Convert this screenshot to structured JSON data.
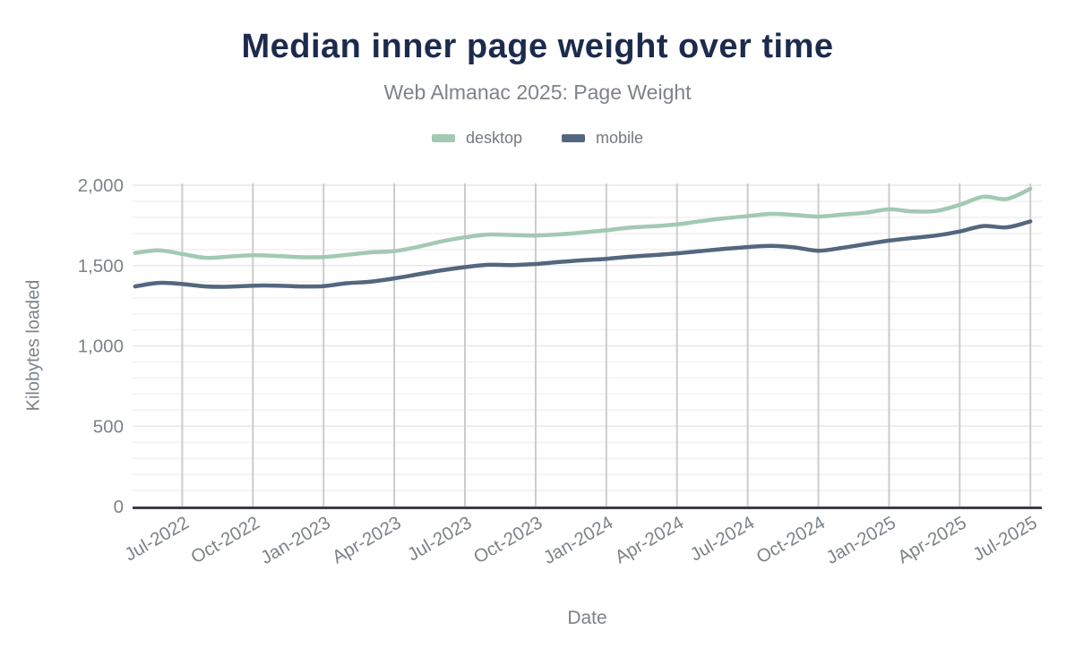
{
  "header": {
    "title": "Median inner page weight over time",
    "subtitle": "Web Almanac 2025: Page Weight"
  },
  "axes": {
    "y_title": "Kilobytes loaded",
    "x_title": "Date"
  },
  "colors": {
    "title": "#1c2b4d",
    "subtitle": "#7e8388",
    "tick_label": "#7d8289",
    "axis_line": "#3c3f46",
    "vertical_gridline": "#cccccc",
    "minor_gridline": "#f1f1f1",
    "major_gridline": "#e8e8e8"
  },
  "chart_data": {
    "type": "line",
    "title": "Median inner page weight over time",
    "subtitle": "Web Almanac 2025: Page Weight",
    "xlabel": "Date",
    "ylabel": "Kilobytes loaded",
    "ylim": [
      0,
      2000
    ],
    "legend_position": "top",
    "grid": {
      "vertical": "quarterly",
      "horizontal_minor_step": 100,
      "horizontal_major_step": 500
    },
    "y_ticks": [
      {
        "value": 0,
        "label": "0"
      },
      {
        "value": 500,
        "label": "500"
      },
      {
        "value": 1000,
        "label": "1,000"
      },
      {
        "value": 1500,
        "label": "1,500"
      },
      {
        "value": 2000,
        "label": "2,000"
      }
    ],
    "categories": [
      "May-2022",
      "Jun-2022",
      "Jul-2022",
      "Aug-2022",
      "Sep-2022",
      "Oct-2022",
      "Nov-2022",
      "Dec-2022",
      "Jan-2023",
      "Feb-2023",
      "Mar-2023",
      "Apr-2023",
      "May-2023",
      "Jun-2023",
      "Jul-2023",
      "Aug-2023",
      "Sep-2023",
      "Oct-2023",
      "Nov-2023",
      "Dec-2023",
      "Jan-2024",
      "Feb-2024",
      "Mar-2024",
      "Apr-2024",
      "May-2024",
      "Jun-2024",
      "Jul-2024",
      "Aug-2024",
      "Sep-2024",
      "Oct-2024",
      "Nov-2024",
      "Dec-2024",
      "Jan-2025",
      "Feb-2025",
      "Mar-2025",
      "Apr-2025",
      "May-2025",
      "Jun-2025",
      "Jul-2025"
    ],
    "x_ticks": [
      {
        "index": 2,
        "label": "Jul-2022"
      },
      {
        "index": 5,
        "label": "Oct-2022"
      },
      {
        "index": 8,
        "label": "Jan-2023"
      },
      {
        "index": 11,
        "label": "Apr-2023"
      },
      {
        "index": 14,
        "label": "Jul-2023"
      },
      {
        "index": 17,
        "label": "Oct-2023"
      },
      {
        "index": 20,
        "label": "Jan-2024"
      },
      {
        "index": 23,
        "label": "Apr-2024"
      },
      {
        "index": 26,
        "label": "Jul-2024"
      },
      {
        "index": 29,
        "label": "Oct-2024"
      },
      {
        "index": 32,
        "label": "Jan-2025"
      },
      {
        "index": 35,
        "label": "Apr-2025"
      },
      {
        "index": 38,
        "label": "Jul-2025"
      }
    ],
    "series": [
      {
        "name": "desktop",
        "color": "#a3c9b2",
        "values": [
          1578,
          1595,
          1572,
          1548,
          1556,
          1564,
          1560,
          1552,
          1553,
          1567,
          1582,
          1590,
          1616,
          1650,
          1676,
          1693,
          1690,
          1687,
          1694,
          1706,
          1720,
          1736,
          1745,
          1756,
          1776,
          1794,
          1808,
          1822,
          1815,
          1805,
          1817,
          1829,
          1850,
          1837,
          1840,
          1878,
          1928,
          1915,
          1978
        ]
      },
      {
        "name": "mobile",
        "color": "#53677e",
        "values": [
          1370,
          1392,
          1385,
          1370,
          1368,
          1375,
          1375,
          1370,
          1372,
          1390,
          1400,
          1420,
          1445,
          1470,
          1490,
          1505,
          1503,
          1510,
          1522,
          1533,
          1542,
          1555,
          1565,
          1576,
          1590,
          1604,
          1615,
          1623,
          1613,
          1592,
          1610,
          1633,
          1655,
          1672,
          1687,
          1712,
          1746,
          1738,
          1775
        ]
      }
    ]
  }
}
